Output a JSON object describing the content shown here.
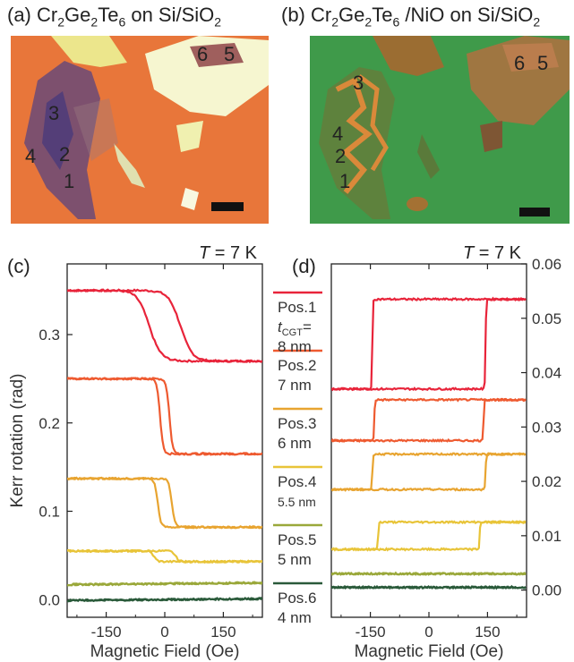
{
  "panels": {
    "a": {
      "label": "(a)",
      "material": "Cr",
      "sub1": "2",
      "mid1": "Ge",
      "sub2": "2",
      "mid2": "Te",
      "sub3": "6",
      "suffix": " on Si/SiO",
      "sub4": "2"
    },
    "b": {
      "label": "(b)",
      "material": "Cr",
      "sub1": "2",
      "mid1": "Ge",
      "sub2": "2",
      "mid2": "Te",
      "sub3": "6",
      "suffix": " /NiO on Si/SiO",
      "sub4": "2"
    }
  },
  "micro_a": {
    "background": "#e8763a",
    "labels": [
      {
        "text": "1",
        "color": "#e03030"
      },
      {
        "text": "2",
        "color": "#e04a2a"
      },
      {
        "text": "3",
        "color": "#e6a83a"
      },
      {
        "text": "4",
        "color": "#e8c040"
      },
      {
        "text": "5",
        "color": "#a8b040"
      },
      {
        "text": "6",
        "color": "#3a4a3a"
      }
    ]
  },
  "micro_b": {
    "background": "#3f9a4a",
    "labels": [
      {
        "text": "1",
        "color": "#e03030"
      },
      {
        "text": "2",
        "color": "#e04a2a"
      },
      {
        "text": "3",
        "color": "#e6a83a"
      },
      {
        "text": "4",
        "color": "#e8c040"
      },
      {
        "text": "5",
        "color": "#a8b040"
      },
      {
        "text": "6",
        "color": "#2f5f4f"
      }
    ]
  },
  "legend": [
    {
      "pos": "Pos.1",
      "thickness": "8 nm",
      "color": "#e8243a",
      "tcgt": true
    },
    {
      "pos": "Pos.2",
      "thickness": "7 nm",
      "color": "#ee5a30"
    },
    {
      "pos": "Pos.3",
      "thickness": "6 nm",
      "color": "#e8a430"
    },
    {
      "pos": "Pos.4",
      "thickness": "5.5 nm",
      "color": "#e8c438"
    },
    {
      "pos": "Pos.5",
      "thickness": "5 nm",
      "color": "#9aa83a"
    },
    {
      "pos": "Pos.6",
      "thickness": "4 nm",
      "color": "#2a5a3a"
    }
  ],
  "tcgt_label": {
    "t": "t",
    "sub": "CGT",
    "eq": "="
  },
  "chart_data": [
    {
      "type": "line",
      "panel": "(c)",
      "annotation": "T = 7 K",
      "xlabel": "Magnetic Field (Oe)",
      "ylabel": "Kerr rotation (rad)",
      "xlim": [
        -250,
        250
      ],
      "ylim": [
        -0.02,
        0.38
      ],
      "xticks": [
        -150,
        0,
        150
      ],
      "yticks": [
        0.0,
        0.1,
        0.2,
        0.3
      ],
      "ytick_labels": [
        "0.0",
        "0.1",
        "0.2",
        "0.3"
      ],
      "series": [
        {
          "name": "Pos.1",
          "color": "#e8243a",
          "low": 0.27,
          "high": 0.35,
          "hc": 40,
          "width": 60
        },
        {
          "name": "Pos.2",
          "color": "#ee5a30",
          "low": 0.165,
          "high": 0.25,
          "hc": 12,
          "width": 16
        },
        {
          "name": "Pos.3",
          "color": "#e8a430",
          "low": 0.082,
          "high": 0.137,
          "hc": 18,
          "width": 16
        },
        {
          "name": "Pos.4",
          "color": "#e8c438",
          "low": 0.043,
          "high": 0.055,
          "hc": 28,
          "width": 18
        },
        {
          "name": "Pos.5",
          "color": "#9aa83a",
          "low": 0.018,
          "high": 0.018,
          "hc": 0,
          "width": 10
        },
        {
          "name": "Pos.6",
          "color": "#2a5a3a",
          "low": 0.0,
          "high": 0.0,
          "hc": 0,
          "width": 10
        }
      ]
    },
    {
      "type": "line",
      "panel": "(d)",
      "annotation": "T = 7 K",
      "xlabel": "Magnetic Field (Oe)",
      "ylabel": "",
      "xlim": [
        -250,
        250
      ],
      "ylim": [
        -0.005,
        0.06
      ],
      "xticks": [
        -150,
        0,
        150
      ],
      "yticks": [
        0.0,
        0.01,
        0.02,
        0.03,
        0.04,
        0.05,
        0.06
      ],
      "ytick_labels": [
        "0.00",
        "0.01",
        "0.02",
        "0.03",
        "0.04",
        "0.05",
        "0.06"
      ],
      "series": [
        {
          "name": "Pos.1",
          "color": "#e8243a",
          "low": 0.037,
          "high": 0.0535,
          "hc": 145,
          "width": 3
        },
        {
          "name": "Pos.2",
          "color": "#ee5a30",
          "low": 0.0275,
          "high": 0.035,
          "hc": 140,
          "width": 3
        },
        {
          "name": "Pos.3",
          "color": "#e8a430",
          "low": 0.0185,
          "high": 0.025,
          "hc": 145,
          "width": 3
        },
        {
          "name": "Pos.4",
          "color": "#e8c438",
          "low": 0.0075,
          "high": 0.0125,
          "hc": 130,
          "width": 3
        },
        {
          "name": "Pos.5",
          "color": "#9aa83a",
          "low": 0.003,
          "high": 0.003,
          "hc": 0,
          "width": 3
        },
        {
          "name": "Pos.6",
          "color": "#2a5a3a",
          "low": 0.0005,
          "high": 0.0005,
          "hc": 0,
          "width": 3
        }
      ]
    }
  ]
}
